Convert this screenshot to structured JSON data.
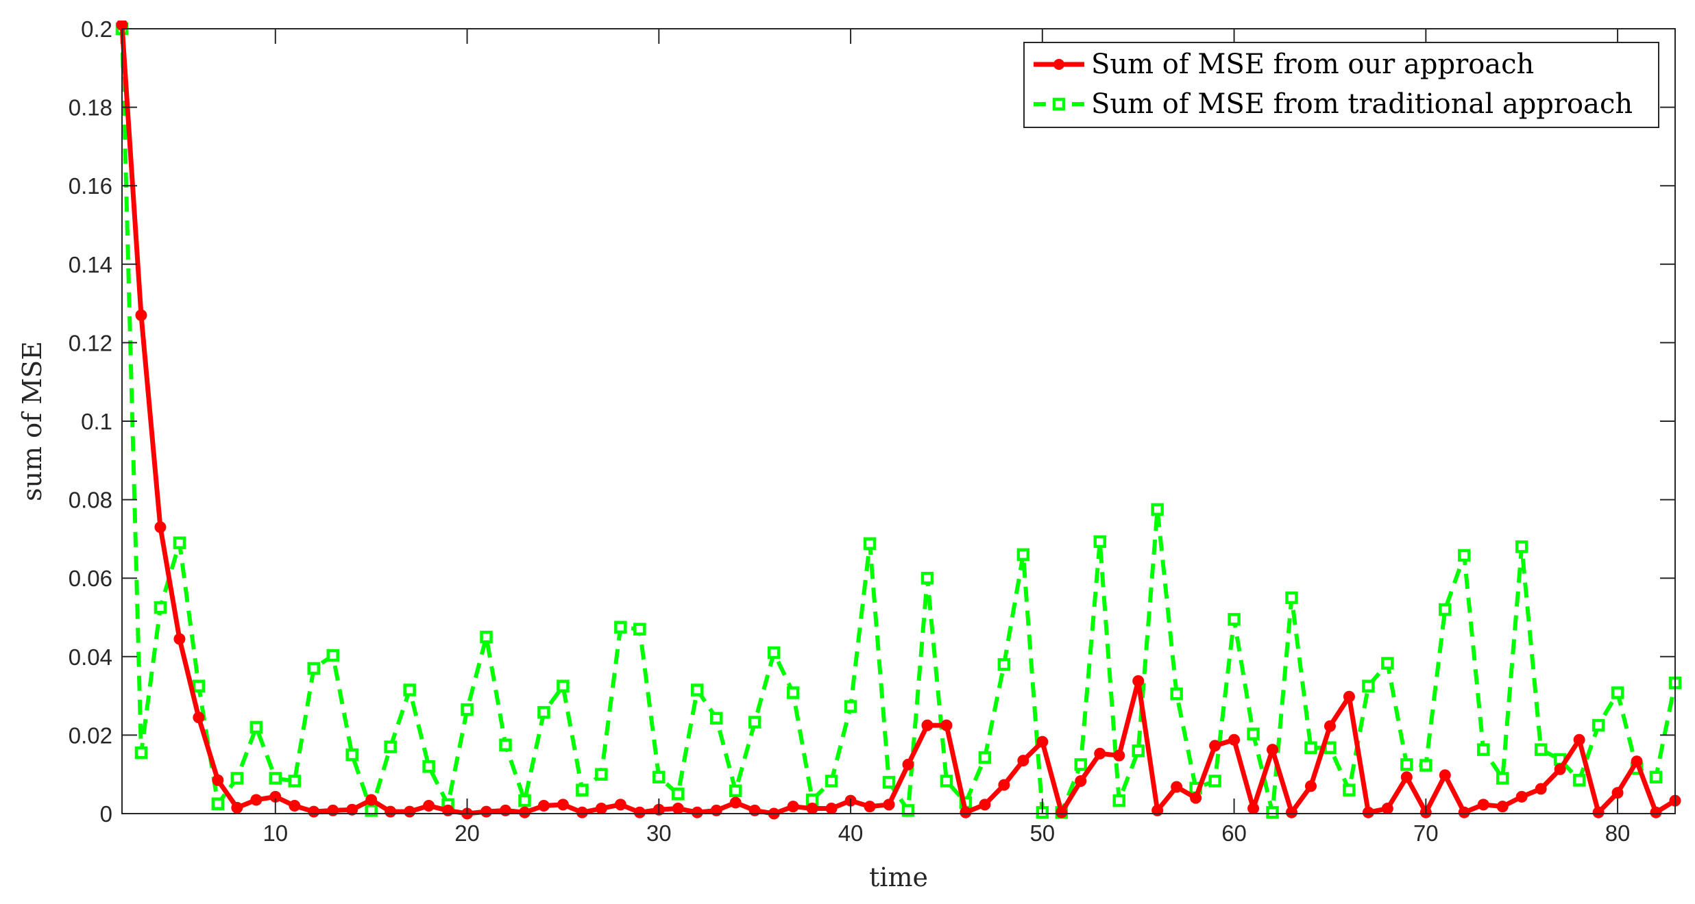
{
  "chart_data": {
    "type": "line",
    "xlabel": "time",
    "ylabel": "sum of MSE",
    "xlim": [
      2,
      83
    ],
    "ylim": [
      0,
      0.2
    ],
    "xticks": [
      10,
      20,
      30,
      40,
      50,
      60,
      70,
      80
    ],
    "yticks": [
      0,
      0.02,
      0.04,
      0.06,
      0.08,
      0.1,
      0.12,
      0.14,
      0.16,
      0.18,
      0.2
    ],
    "grid": false,
    "legend_position": "top-right",
    "x": [
      2,
      3,
      4,
      5,
      6,
      7,
      8,
      9,
      10,
      11,
      12,
      13,
      14,
      15,
      16,
      17,
      18,
      19,
      20,
      21,
      22,
      23,
      24,
      25,
      26,
      27,
      28,
      29,
      30,
      31,
      32,
      33,
      34,
      35,
      36,
      37,
      38,
      39,
      40,
      41,
      42,
      43,
      44,
      45,
      46,
      47,
      48,
      49,
      50,
      51,
      52,
      53,
      54,
      55,
      56,
      57,
      58,
      59,
      60,
      61,
      62,
      63,
      64,
      65,
      66,
      67,
      68,
      69,
      70,
      71,
      72,
      73,
      74,
      75,
      76,
      77,
      78,
      79,
      80,
      81,
      82,
      83
    ],
    "series": [
      {
        "name": "Sum of MSE from our approach",
        "color": "#ff0000",
        "line_style": "solid",
        "marker": "circle",
        "values": [
          0.201,
          0.127,
          0.073,
          0.0445,
          0.0245,
          0.0085,
          0.0015,
          0.0035,
          0.0043,
          0.002,
          0.0005,
          0.0008,
          0.001,
          0.0035,
          0.0005,
          0.0005,
          0.002,
          0.0008,
          0.0,
          0.0005,
          0.0008,
          0.0003,
          0.002,
          0.0023,
          0.0003,
          0.0013,
          0.0023,
          0.0003,
          0.001,
          0.0013,
          0.0003,
          0.0008,
          0.0028,
          0.0008,
          0.0,
          0.0018,
          0.0013,
          0.0013,
          0.0033,
          0.0018,
          0.0023,
          0.0125,
          0.0225,
          0.0225,
          0.0003,
          0.0023,
          0.0073,
          0.0135,
          0.0183,
          0.0003,
          0.0083,
          0.0153,
          0.0148,
          0.0338,
          0.0008,
          0.0068,
          0.004,
          0.0173,
          0.0188,
          0.0013,
          0.0163,
          0.0003,
          0.007,
          0.0223,
          0.0298,
          0.0003,
          0.0013,
          0.0093,
          0.0003,
          0.0098,
          0.0003,
          0.0023,
          0.0018,
          0.0043,
          0.0063,
          0.0113,
          0.0188,
          0.0003,
          0.0053,
          0.0133,
          0.0003,
          0.0033
        ]
      },
      {
        "name": "Sum of MSE from traditional approach",
        "color": "#00ff00",
        "line_style": "dashed",
        "marker": "square",
        "values": [
          0.2,
          0.0155,
          0.0525,
          0.069,
          0.0325,
          0.0025,
          0.009,
          0.022,
          0.009,
          0.0083,
          0.037,
          0.0403,
          0.015,
          0.0008,
          0.017,
          0.0315,
          0.012,
          0.0023,
          0.0265,
          0.045,
          0.0175,
          0.0033,
          0.0258,
          0.0325,
          0.006,
          0.01,
          0.0475,
          0.047,
          0.0093,
          0.005,
          0.0315,
          0.0243,
          0.0058,
          0.0233,
          0.041,
          0.0308,
          0.0035,
          0.0083,
          0.0273,
          0.0688,
          0.008,
          0.0008,
          0.06,
          0.0083,
          0.0028,
          0.0143,
          0.038,
          0.066,
          0.0003,
          0.0003,
          0.0125,
          0.0693,
          0.0033,
          0.016,
          0.0775,
          0.0305,
          0.0065,
          0.0083,
          0.0495,
          0.0203,
          0.0003,
          0.055,
          0.0168,
          0.0168,
          0.006,
          0.0325,
          0.0383,
          0.0125,
          0.0123,
          0.052,
          0.0658,
          0.0163,
          0.009,
          0.068,
          0.0163,
          0.0138,
          0.0085,
          0.0225,
          0.0308,
          0.0115,
          0.0093,
          0.0333
        ]
      }
    ]
  }
}
